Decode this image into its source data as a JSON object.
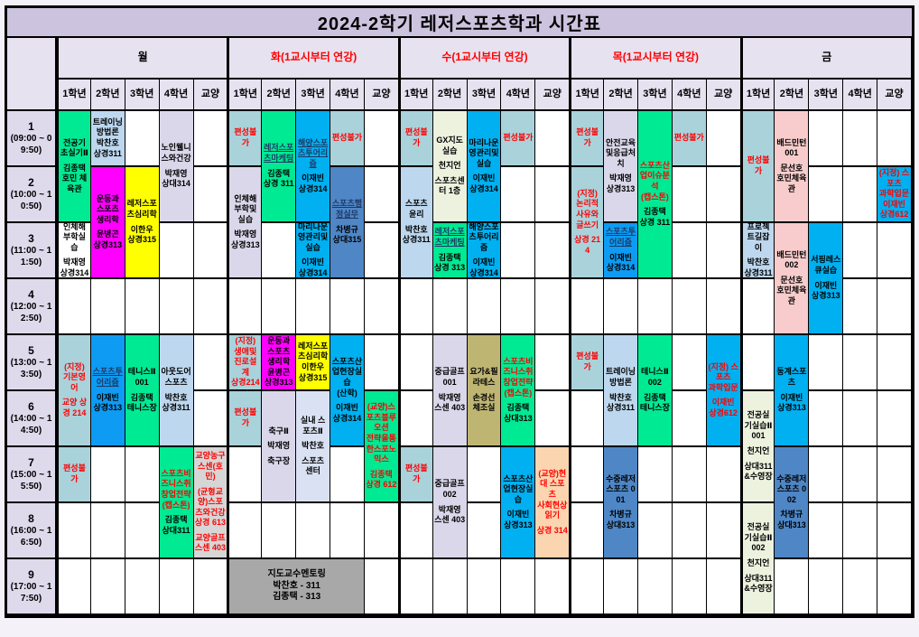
{
  "title": "2024-2학기 레저스포츠학과 시간표",
  "colors": {
    "white": "#ffffff",
    "titlebar": "#ccc4de",
    "header": "#e6e2f0",
    "timecol": "#dedaec",
    "teal": "#a9d2db",
    "green": "#00e993",
    "magenta": "#ff00ff",
    "yellow": "#ffff00",
    "skyblue": "#00b0f0",
    "dodger": "#0d9bf3",
    "medblue": "#4e86c6",
    "ltblue": "#bdd7ee",
    "lavcell": "#dad7ea",
    "ltlav": "#d9e1f2",
    "pink": "#f8cccc",
    "peach": "#fad5b0",
    "palegreen": "#edf2df",
    "khaki": "#beb573",
    "gray1": "#d6d6d6",
    "gray2": "#a8a8a8",
    "red_text": "#ff0000",
    "navy_text": "#1f3864"
  },
  "days": [
    {
      "label": "월",
      "red": false
    },
    {
      "label": "화(1교시부터 연강)",
      "red": true
    },
    {
      "label": "수(1교시부터 연강)",
      "red": true
    },
    {
      "label": "목(1교시부터 연강)",
      "red": true
    },
    {
      "label": "금",
      "red": false
    }
  ],
  "year_columns": [
    "1학년",
    "2학년",
    "3학년",
    "4학년",
    "교양"
  ],
  "periods": [
    {
      "num": "1",
      "time": "(09:00 ~ 09:50)"
    },
    {
      "num": "2",
      "time": "(10:00 ~ 10:50)"
    },
    {
      "num": "3",
      "time": "(11:00 ~ 11:50)"
    },
    {
      "num": "4",
      "time": "(12:00 ~ 12:50)"
    },
    {
      "num": "5",
      "time": "(13:00 ~ 13:50)"
    },
    {
      "num": "6",
      "time": "(14:00 ~ 14:50)"
    },
    {
      "num": "7",
      "time": "(15:00 ~ 15:50)"
    },
    {
      "num": "8",
      "time": "(16:00 ~ 16:50)"
    },
    {
      "num": "9",
      "time": "(17:00 ~ 17:50)"
    }
  ],
  "cells": [
    {
      "day": 0,
      "col": 0,
      "row": 1,
      "span": 2,
      "bg": "green",
      "lines": [
        "전공기초실기Ⅱ",
        "",
        "김종택",
        "호민 체육관"
      ]
    },
    {
      "day": 0,
      "col": 0,
      "row": 3,
      "span": 1,
      "bg": "white",
      "lines": [
        "인체해부학실습",
        "",
        "박재영 상경314"
      ]
    },
    {
      "day": 0,
      "col": 0,
      "row": 5,
      "span": 2,
      "bg": "teal",
      "lines": [
        {
          "t": "(지정) 기본영어",
          "r": 1
        },
        "",
        {
          "t": "교양 상경 214",
          "r": 1
        }
      ]
    },
    {
      "day": 0,
      "col": 0,
      "row": 7,
      "span": 1,
      "bg": "teal",
      "lines": [
        {
          "t": "편성불가",
          "r": 1
        }
      ]
    },
    {
      "day": 0,
      "col": 1,
      "row": 1,
      "span": 1,
      "bg": "ltblue",
      "lines": [
        "트레이닝방법론",
        "박찬호 상경311"
      ]
    },
    {
      "day": 0,
      "col": 1,
      "row": 2,
      "span": 2,
      "bg": "magenta",
      "lines": [
        "운동과 스포츠 생리학",
        "",
        "윤병곤 상경313"
      ]
    },
    {
      "day": 0,
      "col": 1,
      "row": 5,
      "span": 2,
      "bg": "dodger",
      "lines": [
        {
          "t": "스포츠투어리즘",
          "u": 1
        },
        "",
        "이재빈 상경313"
      ]
    },
    {
      "day": 0,
      "col": 2,
      "row": 2,
      "span": 2,
      "bg": "yellow",
      "lines": [
        "레저스포츠심리학",
        "",
        "이한우 상경315"
      ]
    },
    {
      "day": 0,
      "col": 2,
      "row": 5,
      "span": 2,
      "bg": "green",
      "lines": [
        "테니스Ⅱ 001",
        "",
        "김종택 테니스장"
      ]
    },
    {
      "day": 0,
      "col": 3,
      "row": 1,
      "span": 2,
      "bg": "lavcell",
      "lines": [
        "노인웰니스와건강",
        "",
        "박재영 상대314"
      ]
    },
    {
      "day": 0,
      "col": 3,
      "row": 5,
      "span": 2,
      "bg": "ltblue",
      "lines": [
        "아웃도어스포츠",
        "",
        "박찬호 상경311"
      ]
    },
    {
      "day": 0,
      "col": 3,
      "row": 7,
      "span": 2,
      "bg": "green",
      "lines": [
        {
          "t": "스포츠비즈니스취창업전략(캡스톤)",
          "r": 1
        },
        "",
        "김종택 상대311"
      ]
    },
    {
      "day": 0,
      "col": 4,
      "row": 7,
      "span": 2,
      "bg": "gray1",
      "lines": [
        {
          "t": "교양농구 스센(호민)",
          "r": 1
        },
        "",
        {
          "t": "(균형교양)스포츠와건강",
          "r": 1
        },
        {
          "t": "상경 613",
          "r": 1
        },
        "",
        {
          "t": "교양골프 스센 403",
          "r": 1
        }
      ]
    },
    {
      "day": 1,
      "col": 0,
      "row": 1,
      "span": 1,
      "bg": "teal",
      "lines": [
        {
          "t": "편성불가",
          "r": 1
        }
      ]
    },
    {
      "day": 1,
      "col": 0,
      "row": 2,
      "span": 2,
      "bg": "lavcell",
      "lines": [
        "인체해부학및실습",
        "",
        "박재영 상경313"
      ]
    },
    {
      "day": 1,
      "col": 0,
      "row": 5,
      "span": 1,
      "bg": "teal",
      "lines": [
        {
          "t": "(지정) 생애및진로설계",
          "r": 1
        },
        {
          "t": "상경214",
          "r": 1
        }
      ]
    },
    {
      "day": 1,
      "col": 0,
      "row": 6,
      "span": 1,
      "bg": "teal",
      "lines": [
        {
          "t": "편성불가",
          "r": 1
        }
      ]
    },
    {
      "day": 1,
      "col": 1,
      "row": 1,
      "span": 2,
      "bg": "green",
      "lines": [
        {
          "t": "레저스포츠마케팅",
          "u": 1
        },
        "",
        "김종택 상경 311"
      ]
    },
    {
      "day": 1,
      "col": 1,
      "row": 5,
      "span": 1,
      "bg": "magenta",
      "lines": [
        "운동과 스포츠 생리학",
        "윤병곤 상경313"
      ]
    },
    {
      "day": 1,
      "col": 1,
      "row": 6,
      "span": 2,
      "bg": "lavcell",
      "lines": [
        "축구Ⅱ",
        "",
        "박재영",
        "",
        "축구장"
      ]
    },
    {
      "day": 1,
      "col": 2,
      "row": 1,
      "span": 2,
      "bg": "skyblue",
      "lines": [
        {
          "t": "해양스포츠투어리즘",
          "u": 1
        },
        "",
        "이재빈 상경314"
      ]
    },
    {
      "day": 1,
      "col": 2,
      "row": 3,
      "span": 1,
      "bg": "skyblue",
      "lines": [
        "마리나운영관리및실습",
        "",
        "이재빈 상경314"
      ]
    },
    {
      "day": 1,
      "col": 2,
      "row": 5,
      "span": 1,
      "bg": "yellow",
      "lines": [
        "레저스포츠심리학",
        "이한우 상경315"
      ]
    },
    {
      "day": 1,
      "col": 2,
      "row": 6,
      "span": 2,
      "bg": "ltlav",
      "lines": [
        "실내 스포츠Ⅱ",
        "",
        "박찬호",
        "",
        "스포츠 센터"
      ]
    },
    {
      "day": 1,
      "col": 3,
      "row": 1,
      "span": 1,
      "bg": "teal",
      "lines": [
        {
          "t": "편성불가",
          "r": 1
        }
      ]
    },
    {
      "day": 1,
      "col": 3,
      "row": 2,
      "span": 2,
      "bg": "medblue",
      "lines": [
        {
          "t": "스포츠행정실무",
          "u": 1
        },
        "",
        "차병규 상대315"
      ]
    },
    {
      "day": 1,
      "col": 3,
      "row": 5,
      "span": 2,
      "bg": "skyblue",
      "lines": [
        "스포츠산업현장실습",
        "(산학)",
        "",
        "이재빈 상경314"
      ]
    },
    {
      "day": 1,
      "col": 4,
      "row": 6,
      "span": 2,
      "bg": "green",
      "lines": [
        {
          "t": "(교양)스포츠블루오션",
          "r": 1
        },
        {
          "t": "전략을통한스포노믹스",
          "r": 1
        },
        "",
        {
          "t": "김종택 상경 612",
          "r": 1
        }
      ]
    },
    {
      "day": 1,
      "col": 0,
      "row": 9,
      "span": 1,
      "colspan": 4,
      "bg": "gray2",
      "mnt": 1,
      "lines": [
        "지도교수멘토링",
        "박찬호 - 311",
        "김종택 - 313"
      ]
    },
    {
      "day": 2,
      "col": 0,
      "row": 1,
      "span": 1,
      "bg": "teal",
      "lines": [
        {
          "t": "편성불가",
          "r": 1
        }
      ]
    },
    {
      "day": 2,
      "col": 0,
      "row": 2,
      "span": 2,
      "bg": "ltblue",
      "lines": [
        "스포츠윤리",
        "",
        "박찬호 상경311"
      ]
    },
    {
      "day": 2,
      "col": 0,
      "row": 7,
      "span": 1,
      "bg": "teal",
      "lines": [
        {
          "t": "편성불가",
          "r": 1
        }
      ]
    },
    {
      "day": 2,
      "col": 1,
      "row": 1,
      "span": 2,
      "bg": "palegreen",
      "lines": [
        "GX지도실습",
        "",
        "천지언",
        "",
        "스포츠센터 1층"
      ]
    },
    {
      "day": 2,
      "col": 1,
      "row": 3,
      "span": 1,
      "bg": "green",
      "lines": [
        {
          "t": "레저스포츠마케팅",
          "u": 1
        },
        "",
        "김종택 상경 313"
      ]
    },
    {
      "day": 2,
      "col": 1,
      "row": 5,
      "span": 2,
      "bg": "lavcell",
      "lines": [
        "중급골프 001",
        "",
        "박재영",
        "스센 403"
      ]
    },
    {
      "day": 2,
      "col": 1,
      "row": 7,
      "span": 2,
      "bg": "lavcell",
      "lines": [
        "중급골프 002",
        "",
        "박재영",
        "스센 403"
      ]
    },
    {
      "day": 2,
      "col": 2,
      "row": 1,
      "span": 2,
      "bg": "skyblue",
      "lines": [
        "마리나운영관리및실습",
        "",
        "이재빈 상경314"
      ]
    },
    {
      "day": 2,
      "col": 2,
      "row": 3,
      "span": 1,
      "bg": "skyblue",
      "lines": [
        "해양스포츠투어리즘",
        "",
        "이재빈 상경314"
      ]
    },
    {
      "day": 2,
      "col": 2,
      "row": 5,
      "span": 2,
      "bg": "khaki",
      "lines": [
        "요가&필라테스",
        "",
        "손경선",
        "체조실"
      ]
    },
    {
      "day": 2,
      "col": 3,
      "row": 1,
      "span": 1,
      "bg": "teal",
      "lines": [
        {
          "t": "편성불가",
          "r": 1
        }
      ]
    },
    {
      "day": 2,
      "col": 3,
      "row": 5,
      "span": 2,
      "bg": "green",
      "lines": [
        {
          "t": "스포츠비즈니스취창업전략(캡스톤)",
          "r": 1
        },
        "",
        "김종택 상대313"
      ]
    },
    {
      "day": 2,
      "col": 3,
      "row": 7,
      "span": 2,
      "bg": "skyblue",
      "lines": [
        "스포츠산업현장실습",
        "",
        "이재빈 상경313"
      ]
    },
    {
      "day": 2,
      "col": 4,
      "row": 7,
      "span": 2,
      "bg": "peach",
      "lines": [
        {
          "t": "(교양)현대 스포츠",
          "r": 1
        },
        {
          "t": "사회현상읽기",
          "r": 1
        },
        "",
        {
          "t": "상경 314",
          "r": 1
        }
      ]
    },
    {
      "day": 3,
      "col": 0,
      "row": 1,
      "span": 1,
      "bg": "teal",
      "lines": [
        {
          "t": "편성불가",
          "r": 1
        }
      ]
    },
    {
      "day": 3,
      "col": 0,
      "row": 2,
      "span": 2,
      "bg": "teal",
      "lines": [
        {
          "t": "(지정) 논리적사유와",
          "r": 1
        },
        {
          "t": "글쓰기",
          "r": 1
        },
        "",
        {
          "t": "상경 214",
          "r": 1
        }
      ]
    },
    {
      "day": 3,
      "col": 0,
      "row": 5,
      "span": 1,
      "bg": "teal",
      "lines": [
        {
          "t": "편성불가",
          "r": 1
        }
      ]
    },
    {
      "day": 3,
      "col": 1,
      "row": 1,
      "span": 2,
      "bg": "lavcell",
      "lines": [
        "안전교육및응급처치",
        "",
        "박재영 상경313"
      ]
    },
    {
      "day": 3,
      "col": 1,
      "row": 3,
      "span": 1,
      "bg": "dodger",
      "lines": [
        {
          "t": "스포츠투어리즘",
          "u": 1
        },
        "",
        "이재빈 상경314"
      ]
    },
    {
      "day": 3,
      "col": 1,
      "row": 5,
      "span": 2,
      "bg": "ltblue",
      "lines": [
        "트레이닝방법론",
        "",
        "박찬호 상경311"
      ]
    },
    {
      "day": 3,
      "col": 1,
      "row": 7,
      "span": 2,
      "bg": "medblue",
      "lines": [
        "수중레저스포츠 001",
        "",
        "차병규 상대313"
      ]
    },
    {
      "day": 3,
      "col": 2,
      "row": 1,
      "span": 3,
      "bg": "green",
      "lines": [
        {
          "t": "스포츠산업이슈분석",
          "r": 1
        },
        {
          "t": "(캡스톤)",
          "r": 1
        },
        "",
        "김종택 상경 311"
      ]
    },
    {
      "day": 3,
      "col": 2,
      "row": 5,
      "span": 2,
      "bg": "green",
      "lines": [
        "테니스Ⅱ 002",
        "",
        "김종택 테니스장"
      ]
    },
    {
      "day": 3,
      "col": 3,
      "row": 1,
      "span": 1,
      "bg": "teal",
      "lines": [
        {
          "t": "편성불가",
          "r": 1
        }
      ]
    },
    {
      "day": 3,
      "col": 4,
      "row": 5,
      "span": 2,
      "bg": "skyblue",
      "lines": [
        {
          "t": "(지정) 스포츠",
          "r": 1
        },
        {
          "t": "과학입문",
          "r": 1
        },
        "",
        {
          "t": "이재빈 상경612",
          "r": 1
        }
      ]
    },
    {
      "day": 4,
      "col": 0,
      "row": 1,
      "span": 2,
      "bg": "teal",
      "lines": [
        {
          "t": "편성불가",
          "r": 1
        }
      ]
    },
    {
      "day": 4,
      "col": 0,
      "row": 3,
      "span": 1,
      "bg": "ltblue",
      "lines": [
        "프로젝트길잡이",
        "",
        "박찬호 상경311"
      ]
    },
    {
      "day": 4,
      "col": 0,
      "row": 6,
      "span": 2,
      "bg": "palegreen",
      "lines": [
        "전공실기실습Ⅱ 001",
        "",
        "천지언",
        "",
        "상대311&수영장"
      ]
    },
    {
      "day": 4,
      "col": 0,
      "row": 8,
      "span": 2,
      "bg": "palegreen",
      "lines": [
        "전공실기실습Ⅱ 002",
        "",
        "천지언",
        "",
        "상대311&수영장"
      ]
    },
    {
      "day": 4,
      "col": 1,
      "row": 1,
      "span": 2,
      "bg": "pink",
      "lines": [
        "배드민턴 001",
        "",
        "문선호",
        "호민체육관"
      ]
    },
    {
      "day": 4,
      "col": 1,
      "row": 3,
      "span": 2,
      "bg": "pink",
      "lines": [
        "배드민턴 002",
        "",
        "문선호",
        "호민체육관"
      ]
    },
    {
      "day": 4,
      "col": 1,
      "row": 5,
      "span": 2,
      "bg": "skyblue",
      "lines": [
        "동계스포츠",
        "",
        "이재빈 상경313"
      ]
    },
    {
      "day": 4,
      "col": 1,
      "row": 7,
      "span": 2,
      "bg": "medblue",
      "lines": [
        "수중레저스포츠 002",
        "",
        "차병규 상대313"
      ]
    },
    {
      "day": 4,
      "col": 2,
      "row": 3,
      "span": 2,
      "bg": "skyblue",
      "lines": [
        "서핑레스큐실습",
        "",
        "이재빈 상경313"
      ]
    },
    {
      "day": 4,
      "col": 4,
      "row": 2,
      "span": 1,
      "bg": "skyblue",
      "lines": [
        {
          "t": "(지정) 스포츠",
          "r": 1
        },
        {
          "t": "과학입문",
          "r": 1
        },
        {
          "t": "이재빈 상경612",
          "r": 1
        }
      ]
    }
  ]
}
